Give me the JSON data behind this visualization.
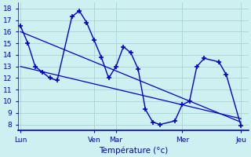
{
  "background_color": "#cff0f0",
  "grid_color": "#9ecece",
  "line_color": "#0000cc",
  "xlabel": "Température (°c)",
  "x_tick_labels": [
    "Lun",
    "Ven",
    "Mar",
    "Mer",
    "Jeu"
  ],
  "x_tick_positions": [
    0,
    10,
    13,
    22,
    30
  ],
  "ylim": [
    7.5,
    18.5
  ],
  "yticks": [
    8,
    9,
    10,
    11,
    12,
    13,
    14,
    15,
    16,
    17,
    18
  ],
  "xlim": [
    -0.3,
    31.0
  ],
  "temp_x": [
    0,
    1,
    2,
    3,
    4,
    5,
    7,
    8,
    9,
    10,
    11,
    12,
    13,
    14,
    15,
    16,
    17,
    18,
    19,
    21,
    22,
    23,
    24,
    25,
    27,
    28,
    30
  ],
  "temp_y": [
    16.5,
    15.0,
    13.0,
    12.5,
    12.0,
    11.8,
    17.3,
    17.8,
    16.8,
    15.3,
    13.8,
    12.0,
    13.0,
    14.7,
    14.2,
    12.8,
    9.3,
    8.2,
    8.0,
    8.3,
    9.7,
    10.0,
    13.0,
    13.7,
    13.4,
    12.3,
    7.9
  ],
  "trend_x": [
    0,
    30
  ],
  "trend_y": [
    16.0,
    8.2
  ],
  "trend2_x": [
    0,
    30
  ],
  "trend2_y": [
    13.0,
    8.5
  ]
}
